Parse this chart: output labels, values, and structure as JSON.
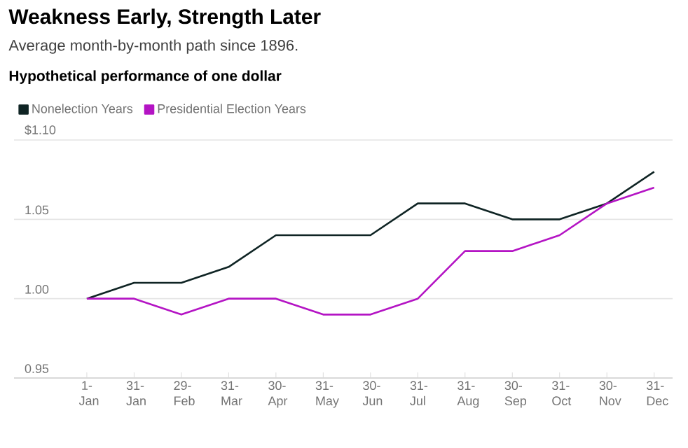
{
  "chart_data": {
    "type": "line",
    "title": "Weakness Early, Strength Later",
    "subtitle": "Average month-by-month path since 1896.",
    "ylabel": "Hypothetical performance of one dollar",
    "categories": [
      "1-Jan",
      "31-Jan",
      "29-Feb",
      "31-Mar",
      "30-Apr",
      "31-May",
      "30-Jun",
      "31-Jul",
      "31-Aug",
      "30-Sep",
      "31-Oct",
      "30-Nov",
      "31-Dec"
    ],
    "series": [
      {
        "name": "Nonelection Years",
        "color": "#0f2424",
        "values": [
          1.0,
          1.01,
          1.01,
          1.02,
          1.04,
          1.04,
          1.04,
          1.06,
          1.06,
          1.05,
          1.05,
          1.06,
          1.08
        ]
      },
      {
        "name": "Presidential Election Years",
        "color": "#b414c4",
        "values": [
          1.0,
          1.0,
          0.99,
          1.0,
          1.0,
          0.99,
          0.99,
          1.0,
          1.03,
          1.03,
          1.04,
          1.06,
          1.07
        ]
      }
    ],
    "ylim": [
      0.95,
      1.1
    ],
    "yticks": [
      0.95,
      {
        "value": 1.0,
        "label": "1.00"
      },
      1.05,
      {
        "value": 1.1,
        "label": "$1.10"
      }
    ],
    "grid": "y",
    "legend": "top left",
    "marker": "none",
    "line_style": "solid"
  }
}
